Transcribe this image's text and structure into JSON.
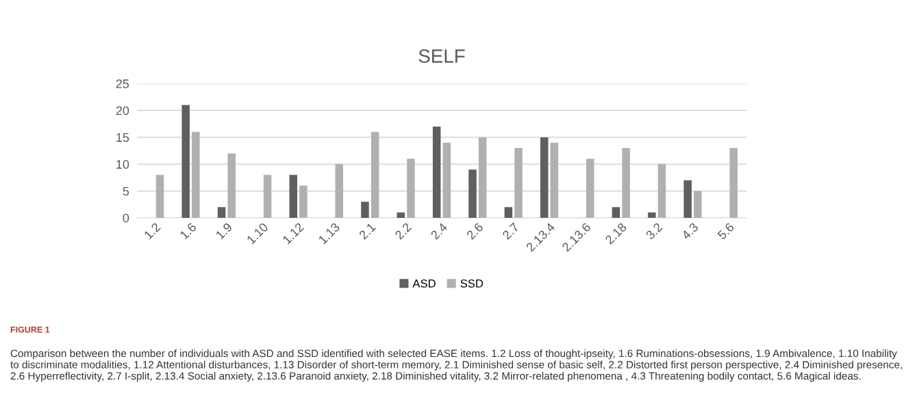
{
  "chart_data": {
    "type": "bar",
    "title": "SELF",
    "categories": [
      "1.2",
      "1.6",
      "1.9",
      "1.10",
      "1.12",
      "1.13",
      "2.1",
      "2.2",
      "2.4",
      "2.6",
      "2.7",
      "2.13.4",
      "2.13.6",
      "2.18",
      "3.2",
      "4.3",
      "5.6"
    ],
    "series": [
      {
        "name": "ASD",
        "color": "#5f5f5f",
        "values": [
          0,
          21,
          2,
          0,
          8,
          0,
          3,
          1,
          17,
          9,
          2,
          15,
          0,
          2,
          1,
          7,
          0
        ]
      },
      {
        "name": "SSD",
        "color": "#b0b0b0",
        "values": [
          8,
          16,
          12,
          8,
          6,
          10,
          16,
          11,
          14,
          15,
          13,
          14,
          11,
          13,
          10,
          5,
          13
        ]
      }
    ],
    "ylim": [
      0,
      25
    ],
    "yticks": [
      0,
      5,
      10,
      15,
      20,
      25
    ],
    "grid": "y",
    "legend": "bottom",
    "annotations": [
      "FIGURE 1",
      "Comparison between the number of individuals with ASD and SSD identified with selected EASE items. 1.2 Loss of thought-ipseity, 1.6 Ruminations-obsessions, 1.9 Ambivalence, 1.10 Inability to discriminate modalities, 1.12 Attentional disturbances, 1.13 Disorder of short-term memory, 2.1 Diminished sense of basic self, 2.2 Distorted first person perspective, 2.4 Diminished presence, 2.6 Hyperreflectivity, 2.7 I-split, 2.13.4 Social anxiety, 2.13.6 Paranoid anxiety, 2.18 Diminished vitality, 3.2 Mirror-related phenomena , 4.3 Threatening bodily contact, 5.6 Magical ideas."
    ]
  }
}
